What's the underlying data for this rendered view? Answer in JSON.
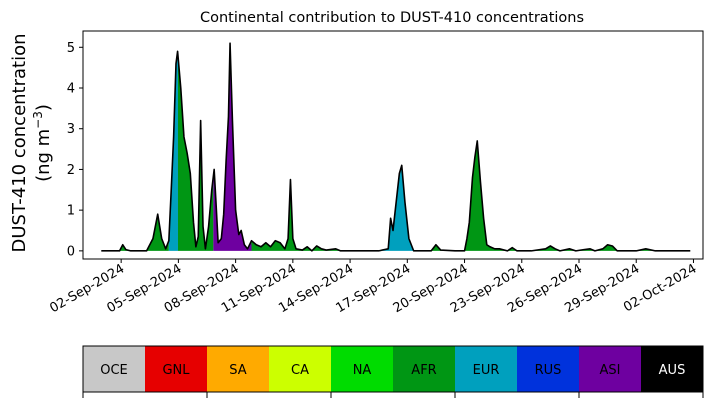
{
  "chart_data": {
    "type": "area",
    "title": "Continental contribution to DUST-410 concentrations",
    "ylabel_line1": "DUST-410 concentration",
    "ylabel_line2": "(ng m",
    "ylabel_sup": "−3",
    "ylabel_close": ")",
    "xlabel": "",
    "ylim": [
      -0.2,
      5.4
    ],
    "xlim": [
      "2024-08-31T00:00",
      "2024-10-02T12:00"
    ],
    "yticks": [
      0,
      1,
      2,
      3,
      4,
      5
    ],
    "xticks": [
      "2024-09-02",
      "2024-09-05",
      "2024-09-08",
      "2024-09-11",
      "2024-09-14",
      "2024-09-17",
      "2024-09-20",
      "2024-09-23",
      "2024-09-26",
      "2024-09-29",
      "2024-10-02"
    ],
    "xtick_labels": [
      "02-Sep-2024",
      "05-Sep-2024",
      "08-Sep-2024",
      "11-Sep-2024",
      "14-Sep-2024",
      "17-Sep-2024",
      "20-Sep-2024",
      "23-Sep-2024",
      "26-Sep-2024",
      "29-Sep-2024",
      "02-Oct-2024"
    ],
    "grid": false,
    "legend": {
      "placement": "bottom",
      "entries": [
        {
          "name": "OCE",
          "color": "#c8c8c8",
          "text_color": "#000000"
        },
        {
          "name": "GNL",
          "color": "#e60000",
          "text_color": "#000000"
        },
        {
          "name": "SA",
          "color": "#ffaa00",
          "text_color": "#000000"
        },
        {
          "name": "CA",
          "color": "#ccff00",
          "text_color": "#000000"
        },
        {
          "name": "NA",
          "color": "#00dc00",
          "text_color": "#000000"
        },
        {
          "name": "AFR",
          "color": "#009614",
          "text_color": "#000000"
        },
        {
          "name": "EUR",
          "color": "#00a0be",
          "text_color": "#000000"
        },
        {
          "name": "RUS",
          "color": "#0032dc",
          "text_color": "#000000"
        },
        {
          "name": "ASI",
          "color": "#6e00a0",
          "text_color": "#000000"
        },
        {
          "name": "AUS",
          "color": "#000000",
          "text_color": "#ffffff"
        }
      ]
    },
    "segments": [
      {
        "from": "2024-08-31T23:00",
        "to": "2024-09-04T12:00",
        "color": "#009614"
      },
      {
        "from": "2024-09-04T12:00",
        "to": "2024-09-04T23:30",
        "color": "#00a0be"
      },
      {
        "from": "2024-09-04T23:30",
        "to": "2024-09-06T20:00",
        "color": "#009614"
      },
      {
        "from": "2024-09-06T20:00",
        "to": "2024-09-08T20:00",
        "color": "#6e00a0"
      },
      {
        "from": "2024-09-08T20:00",
        "to": "2024-09-14T00:00",
        "color": "#009614"
      },
      {
        "from": "2024-09-14T00:00",
        "to": "2024-09-17T18:00",
        "color": "#00a0be"
      },
      {
        "from": "2024-09-17T18:00",
        "to": "2024-10-01T20:00",
        "color": "#009614"
      }
    ],
    "total": {
      "name": "Total",
      "color": "#000000",
      "points": [
        [
          "2024-08-31T23:00",
          0.0
        ],
        [
          "2024-09-01T12:00",
          0.0
        ],
        [
          "2024-09-01T22:00",
          0.0
        ],
        [
          "2024-09-02T02:00",
          0.15
        ],
        [
          "2024-09-02T06:00",
          0.03
        ],
        [
          "2024-09-02T12:00",
          0.0
        ],
        [
          "2024-09-03T08:00",
          0.0
        ],
        [
          "2024-09-03T16:00",
          0.3
        ],
        [
          "2024-09-03T22:00",
          0.9
        ],
        [
          "2024-09-04T03:00",
          0.3
        ],
        [
          "2024-09-04T08:00",
          0.05
        ],
        [
          "2024-09-04T12:00",
          0.25
        ],
        [
          "2024-09-04T15:00",
          1.5
        ],
        [
          "2024-09-04T18:00",
          2.8
        ],
        [
          "2024-09-04T21:00",
          4.6
        ],
        [
          "2024-09-04T23:00",
          4.9
        ],
        [
          "2024-09-05T03:00",
          4.0
        ],
        [
          "2024-09-05T07:00",
          2.8
        ],
        [
          "2024-09-05T11:00",
          2.4
        ],
        [
          "2024-09-05T15:00",
          1.9
        ],
        [
          "2024-09-05T19:00",
          0.7
        ],
        [
          "2024-09-05T22:00",
          0.1
        ],
        [
          "2024-09-06T01:00",
          0.35
        ],
        [
          "2024-09-06T04:00",
          3.2
        ],
        [
          "2024-09-06T07:00",
          0.6
        ],
        [
          "2024-09-06T10:00",
          0.05
        ],
        [
          "2024-09-06T14:00",
          0.6
        ],
        [
          "2024-09-06T18:00",
          1.5
        ],
        [
          "2024-09-06T21:00",
          2.0
        ],
        [
          "2024-09-06T23:00",
          1.3
        ],
        [
          "2024-09-07T02:00",
          0.2
        ],
        [
          "2024-09-07T06:00",
          0.3
        ],
        [
          "2024-09-07T09:00",
          0.9
        ],
        [
          "2024-09-07T12:00",
          2.2
        ],
        [
          "2024-09-07T15:00",
          3.3
        ],
        [
          "2024-09-07T17:00",
          5.1
        ],
        [
          "2024-09-07T20:00",
          3.2
        ],
        [
          "2024-09-08T00:00",
          1.0
        ],
        [
          "2024-09-08T04:00",
          0.4
        ],
        [
          "2024-09-08T07:00",
          0.5
        ],
        [
          "2024-09-08T11:00",
          0.15
        ],
        [
          "2024-09-08T15:00",
          0.05
        ],
        [
          "2024-09-08T20:00",
          0.25
        ],
        [
          "2024-09-09T02:00",
          0.15
        ],
        [
          "2024-09-09T08:00",
          0.1
        ],
        [
          "2024-09-09T14:00",
          0.2
        ],
        [
          "2024-09-09T20:00",
          0.1
        ],
        [
          "2024-09-10T02:00",
          0.25
        ],
        [
          "2024-09-10T08:00",
          0.2
        ],
        [
          "2024-09-10T14:00",
          0.05
        ],
        [
          "2024-09-10T18:00",
          0.3
        ],
        [
          "2024-09-10T21:00",
          1.75
        ],
        [
          "2024-09-11T00:00",
          0.3
        ],
        [
          "2024-09-11T04:00",
          0.05
        ],
        [
          "2024-09-11T12:00",
          0.02
        ],
        [
          "2024-09-11T18:00",
          0.1
        ],
        [
          "2024-09-12T00:00",
          0.0
        ],
        [
          "2024-09-12T06:00",
          0.12
        ],
        [
          "2024-09-12T12:00",
          0.05
        ],
        [
          "2024-09-12T18:00",
          0.02
        ],
        [
          "2024-09-13T06:00",
          0.05
        ],
        [
          "2024-09-13T12:00",
          0.0
        ],
        [
          "2024-09-14T00:00",
          0.0
        ],
        [
          "2024-09-15T12:00",
          0.0
        ],
        [
          "2024-09-16T00:00",
          0.05
        ],
        [
          "2024-09-16T03:00",
          0.8
        ],
        [
          "2024-09-16T06:00",
          0.5
        ],
        [
          "2024-09-16T10:00",
          1.2
        ],
        [
          "2024-09-16T14:00",
          1.9
        ],
        [
          "2024-09-16T17:00",
          2.1
        ],
        [
          "2024-09-16T21:00",
          1.2
        ],
        [
          "2024-09-17T02:00",
          0.3
        ],
        [
          "2024-09-17T08:00",
          0.0
        ],
        [
          "2024-09-18T06:00",
          0.0
        ],
        [
          "2024-09-18T12:00",
          0.15
        ],
        [
          "2024-09-18T18:00",
          0.02
        ],
        [
          "2024-09-19T12:00",
          0.0
        ],
        [
          "2024-09-20T00:00",
          0.0
        ],
        [
          "2024-09-20T03:00",
          0.3
        ],
        [
          "2024-09-20T06:00",
          0.7
        ],
        [
          "2024-09-20T10:00",
          1.8
        ],
        [
          "2024-09-20T13:00",
          2.3
        ],
        [
          "2024-09-20T16:00",
          2.7
        ],
        [
          "2024-09-20T20:00",
          1.7
        ],
        [
          "2024-09-21T00:00",
          0.8
        ],
        [
          "2024-09-21T04:00",
          0.15
        ],
        [
          "2024-09-21T08:00",
          0.1
        ],
        [
          "2024-09-21T14:00",
          0.05
        ],
        [
          "2024-09-21T20:00",
          0.05
        ],
        [
          "2024-09-22T06:00",
          0.0
        ],
        [
          "2024-09-22T12:00",
          0.08
        ],
        [
          "2024-09-22T18:00",
          0.0
        ],
        [
          "2024-09-23T12:00",
          0.0
        ],
        [
          "2024-09-24T06:00",
          0.05
        ],
        [
          "2024-09-24T12:00",
          0.12
        ],
        [
          "2024-09-24T18:00",
          0.05
        ],
        [
          "2024-09-25T00:00",
          0.0
        ],
        [
          "2024-09-25T12:00",
          0.05
        ],
        [
          "2024-09-25T20:00",
          0.0
        ],
        [
          "2024-09-26T06:00",
          0.03
        ],
        [
          "2024-09-26T14:00",
          0.05
        ],
        [
          "2024-09-26T20:00",
          0.0
        ],
        [
          "2024-09-27T06:00",
          0.05
        ],
        [
          "2024-09-27T12:00",
          0.15
        ],
        [
          "2024-09-27T18:00",
          0.12
        ],
        [
          "2024-09-28T00:00",
          0.0
        ],
        [
          "2024-09-29T00:00",
          0.0
        ],
        [
          "2024-09-29T12:00",
          0.05
        ],
        [
          "2024-09-30T00:00",
          0.0
        ],
        [
          "2024-10-01T20:00",
          0.0
        ]
      ]
    }
  }
}
